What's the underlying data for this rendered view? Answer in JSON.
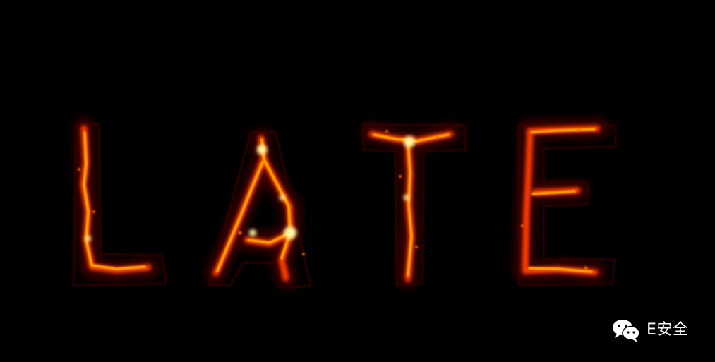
{
  "image": {
    "background_color": "#000000",
    "glow_colors": [
      "#ff2a00",
      "#ff7a00",
      "#ffd84d"
    ],
    "lettering": [
      "L",
      "A",
      "T",
      "E"
    ]
  },
  "watermark": {
    "icon": "wechat-icon",
    "text": "E安全"
  }
}
